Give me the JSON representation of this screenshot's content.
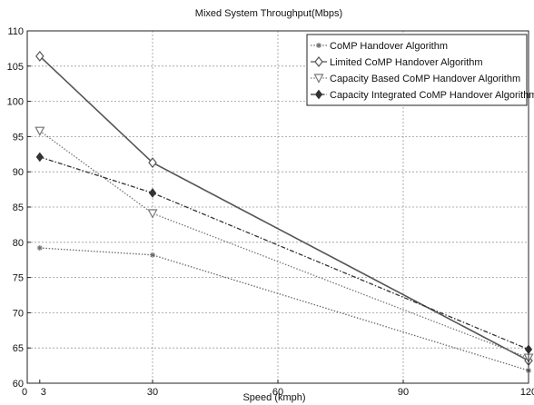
{
  "chart_data": {
    "type": "line",
    "title": "Mixed System Throughput(Mbps)",
    "xlabel": "Speed (kmph)",
    "ylabel": "",
    "xlim": [
      0,
      120
    ],
    "ylim": [
      60,
      110
    ],
    "xticks": [
      0,
      3,
      30,
      60,
      90,
      120
    ],
    "yticks": [
      60,
      65,
      70,
      75,
      80,
      85,
      90,
      95,
      100,
      105,
      110
    ],
    "grid": true,
    "legend_position": "top-right",
    "x": [
      3,
      30,
      120
    ],
    "series": [
      {
        "name": "CoMP Handover Algorithm",
        "values": [
          79.2,
          78.2,
          61.8
        ],
        "marker": "asterisk",
        "line": "dotted",
        "color": "#6a6a6a"
      },
      {
        "name": "Limited CoMP Handover Algorithm",
        "values": [
          106.4,
          91.3,
          63.2
        ],
        "marker": "diamond",
        "line": "solid",
        "color": "#555555"
      },
      {
        "name": "Capacity Based CoMP Handover Algorithm",
        "values": [
          95.8,
          84.1,
          63.6
        ],
        "marker": "triangle-down",
        "line": "dotted",
        "color": "#777777"
      },
      {
        "name": "Capacity Integrated CoMP Handover Algorithm",
        "values": [
          92.1,
          87.0,
          64.8
        ],
        "marker": "diamond-filled",
        "line": "dashdot",
        "color": "#333333"
      }
    ]
  }
}
